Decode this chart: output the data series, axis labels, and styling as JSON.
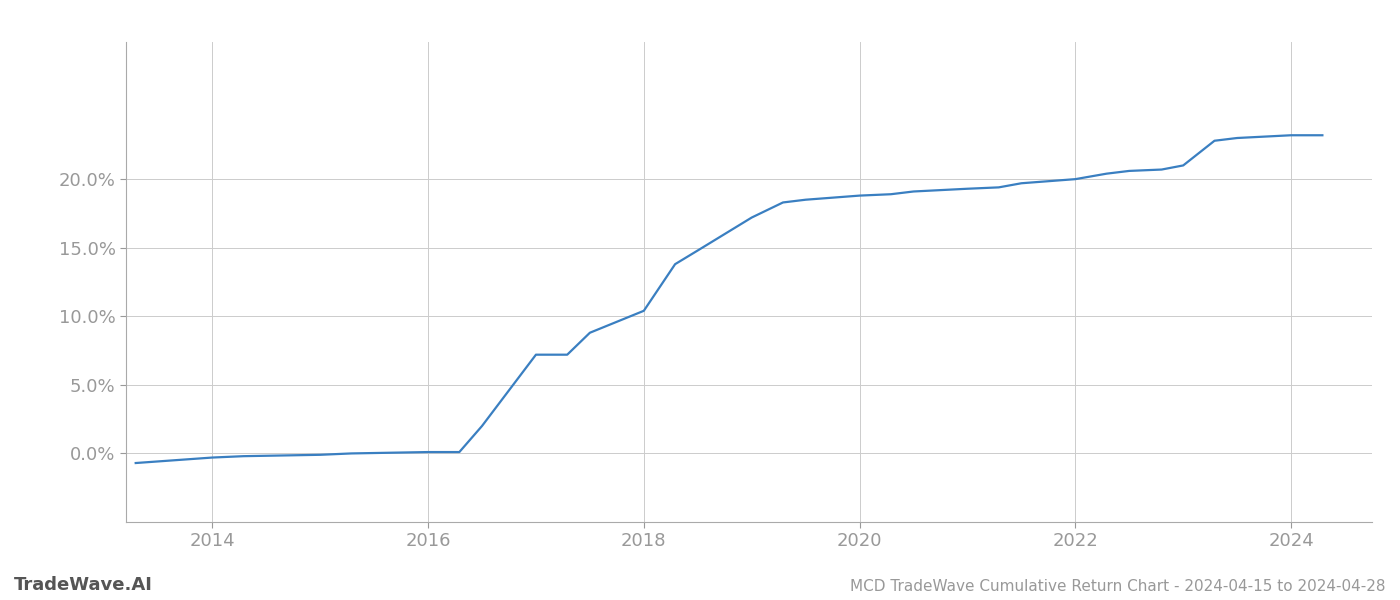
{
  "title": "MCD TradeWave Cumulative Return Chart - 2024-04-15 to 2024-04-28",
  "watermark": "TradeWave.AI",
  "line_color": "#3a7fc1",
  "background_color": "#ffffff",
  "grid_color": "#cccccc",
  "x_years": [
    2013.29,
    2014.0,
    2014.29,
    2015.0,
    2015.29,
    2016.0,
    2016.29,
    2016.5,
    2017.0,
    2017.29,
    2017.5,
    2018.0,
    2018.29,
    2018.5,
    2019.0,
    2019.29,
    2019.5,
    2020.0,
    2020.29,
    2020.5,
    2021.0,
    2021.29,
    2021.5,
    2022.0,
    2022.29,
    2022.5,
    2022.8,
    2023.0,
    2023.29,
    2023.5,
    2024.0,
    2024.29
  ],
  "y_values": [
    -0.007,
    -0.003,
    -0.002,
    -0.001,
    0.0,
    0.001,
    0.001,
    0.02,
    0.072,
    0.072,
    0.088,
    0.104,
    0.138,
    0.148,
    0.172,
    0.183,
    0.185,
    0.188,
    0.189,
    0.191,
    0.193,
    0.194,
    0.197,
    0.2,
    0.204,
    0.206,
    0.207,
    0.21,
    0.228,
    0.23,
    0.232,
    0.232
  ],
  "xlim": [
    2013.2,
    2024.75
  ],
  "ylim": [
    -0.05,
    0.3
  ],
  "yticks": [
    0.0,
    0.05,
    0.1,
    0.15,
    0.2
  ],
  "ytick_labels": [
    "0.0%",
    "5.0%",
    "10.0%",
    "15.0%",
    "20.0%"
  ],
  "xticks": [
    2014,
    2016,
    2018,
    2020,
    2022,
    2024
  ],
  "tick_color": "#999999",
  "label_fontsize": 13,
  "title_fontsize": 11,
  "watermark_fontsize": 13,
  "line_width": 1.6
}
